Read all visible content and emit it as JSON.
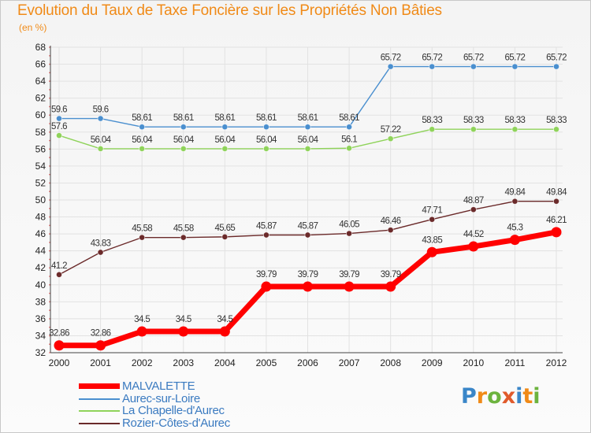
{
  "header": {
    "title": "Evolution du Taux de Taxe Foncière sur les Propriétés Non Bâties",
    "subtitle": "(en %)"
  },
  "brand": {
    "letters": [
      "P",
      "r",
      "o",
      "x",
      "i",
      "t",
      "i"
    ],
    "colors": [
      "#3a86c8",
      "#f08a17",
      "#6cb33e",
      "#e05a2b",
      "#3a86c8",
      "#f08a17",
      "#6cb33e"
    ]
  },
  "chart_data": {
    "type": "line",
    "title": "Evolution du Taux de Taxe Foncière sur les Propriétés Non Bâties",
    "ylabel": "(en %)",
    "xlabel": "",
    "ylim": [
      32,
      68
    ],
    "yticks": [
      32,
      34,
      36,
      38,
      40,
      42,
      44,
      46,
      48,
      50,
      52,
      54,
      56,
      58,
      60,
      62,
      64,
      66,
      68
    ],
    "grid": true,
    "legend_position": "bottom-left",
    "x": [
      "2000",
      "2001",
      "2002",
      "2003",
      "2004",
      "2005",
      "2006",
      "2007",
      "2008",
      "2009",
      "2010",
      "2011",
      "2012"
    ],
    "series": [
      {
        "name": "MALVALETTE",
        "color": "#ff0000",
        "values": [
          32.86,
          32.86,
          34.5,
          34.5,
          34.5,
          39.79,
          39.79,
          39.79,
          39.79,
          43.85,
          44.52,
          45.3,
          46.21
        ],
        "labels": [
          "32.86",
          "32.86",
          "34.5",
          "34.5",
          "34.5",
          "39.79",
          "39.79",
          "39.79",
          "39.79",
          "43.85",
          "44.52",
          "45.3",
          "46.21"
        ]
      },
      {
        "name": "Aurec-sur-Loire",
        "color": "#4a8fcf",
        "values": [
          59.6,
          59.6,
          58.61,
          58.61,
          58.61,
          58.61,
          58.61,
          58.61,
          65.72,
          65.72,
          65.72,
          65.72,
          65.72
        ],
        "labels": [
          "59.6",
          "59.6",
          "58.61",
          "58.61",
          "58.61",
          "58.61",
          "58.61",
          "58.61",
          "65.72",
          "65.72",
          "65.72",
          "65.72",
          "65.72"
        ]
      },
      {
        "name": "La Chapelle-d'Aurec",
        "color": "#8fd35a",
        "values": [
          57.6,
          56.04,
          56.04,
          56.04,
          56.04,
          56.04,
          56.04,
          56.1,
          57.22,
          58.33,
          58.33,
          58.33,
          58.33
        ],
        "labels": [
          "57.6",
          "56.04",
          "56.04",
          "56.04",
          "56.04",
          "56.04",
          "56.04",
          "56.1",
          "57.22",
          "58.33",
          "58.33",
          "58.33",
          "58.33"
        ]
      },
      {
        "name": "Rozier-Côtes-d'Aurec",
        "color": "#6b2a2a",
        "values": [
          41.2,
          43.83,
          45.58,
          45.58,
          45.65,
          45.87,
          45.87,
          46.05,
          46.46,
          47.71,
          48.87,
          49.84,
          49.84
        ],
        "labels": [
          "41.2",
          "43.83",
          "45.58",
          "45.58",
          "45.65",
          "45.87",
          "45.87",
          "46.05",
          "46.46",
          "47.71",
          "48.87",
          "49.84",
          "49.84"
        ]
      }
    ]
  }
}
